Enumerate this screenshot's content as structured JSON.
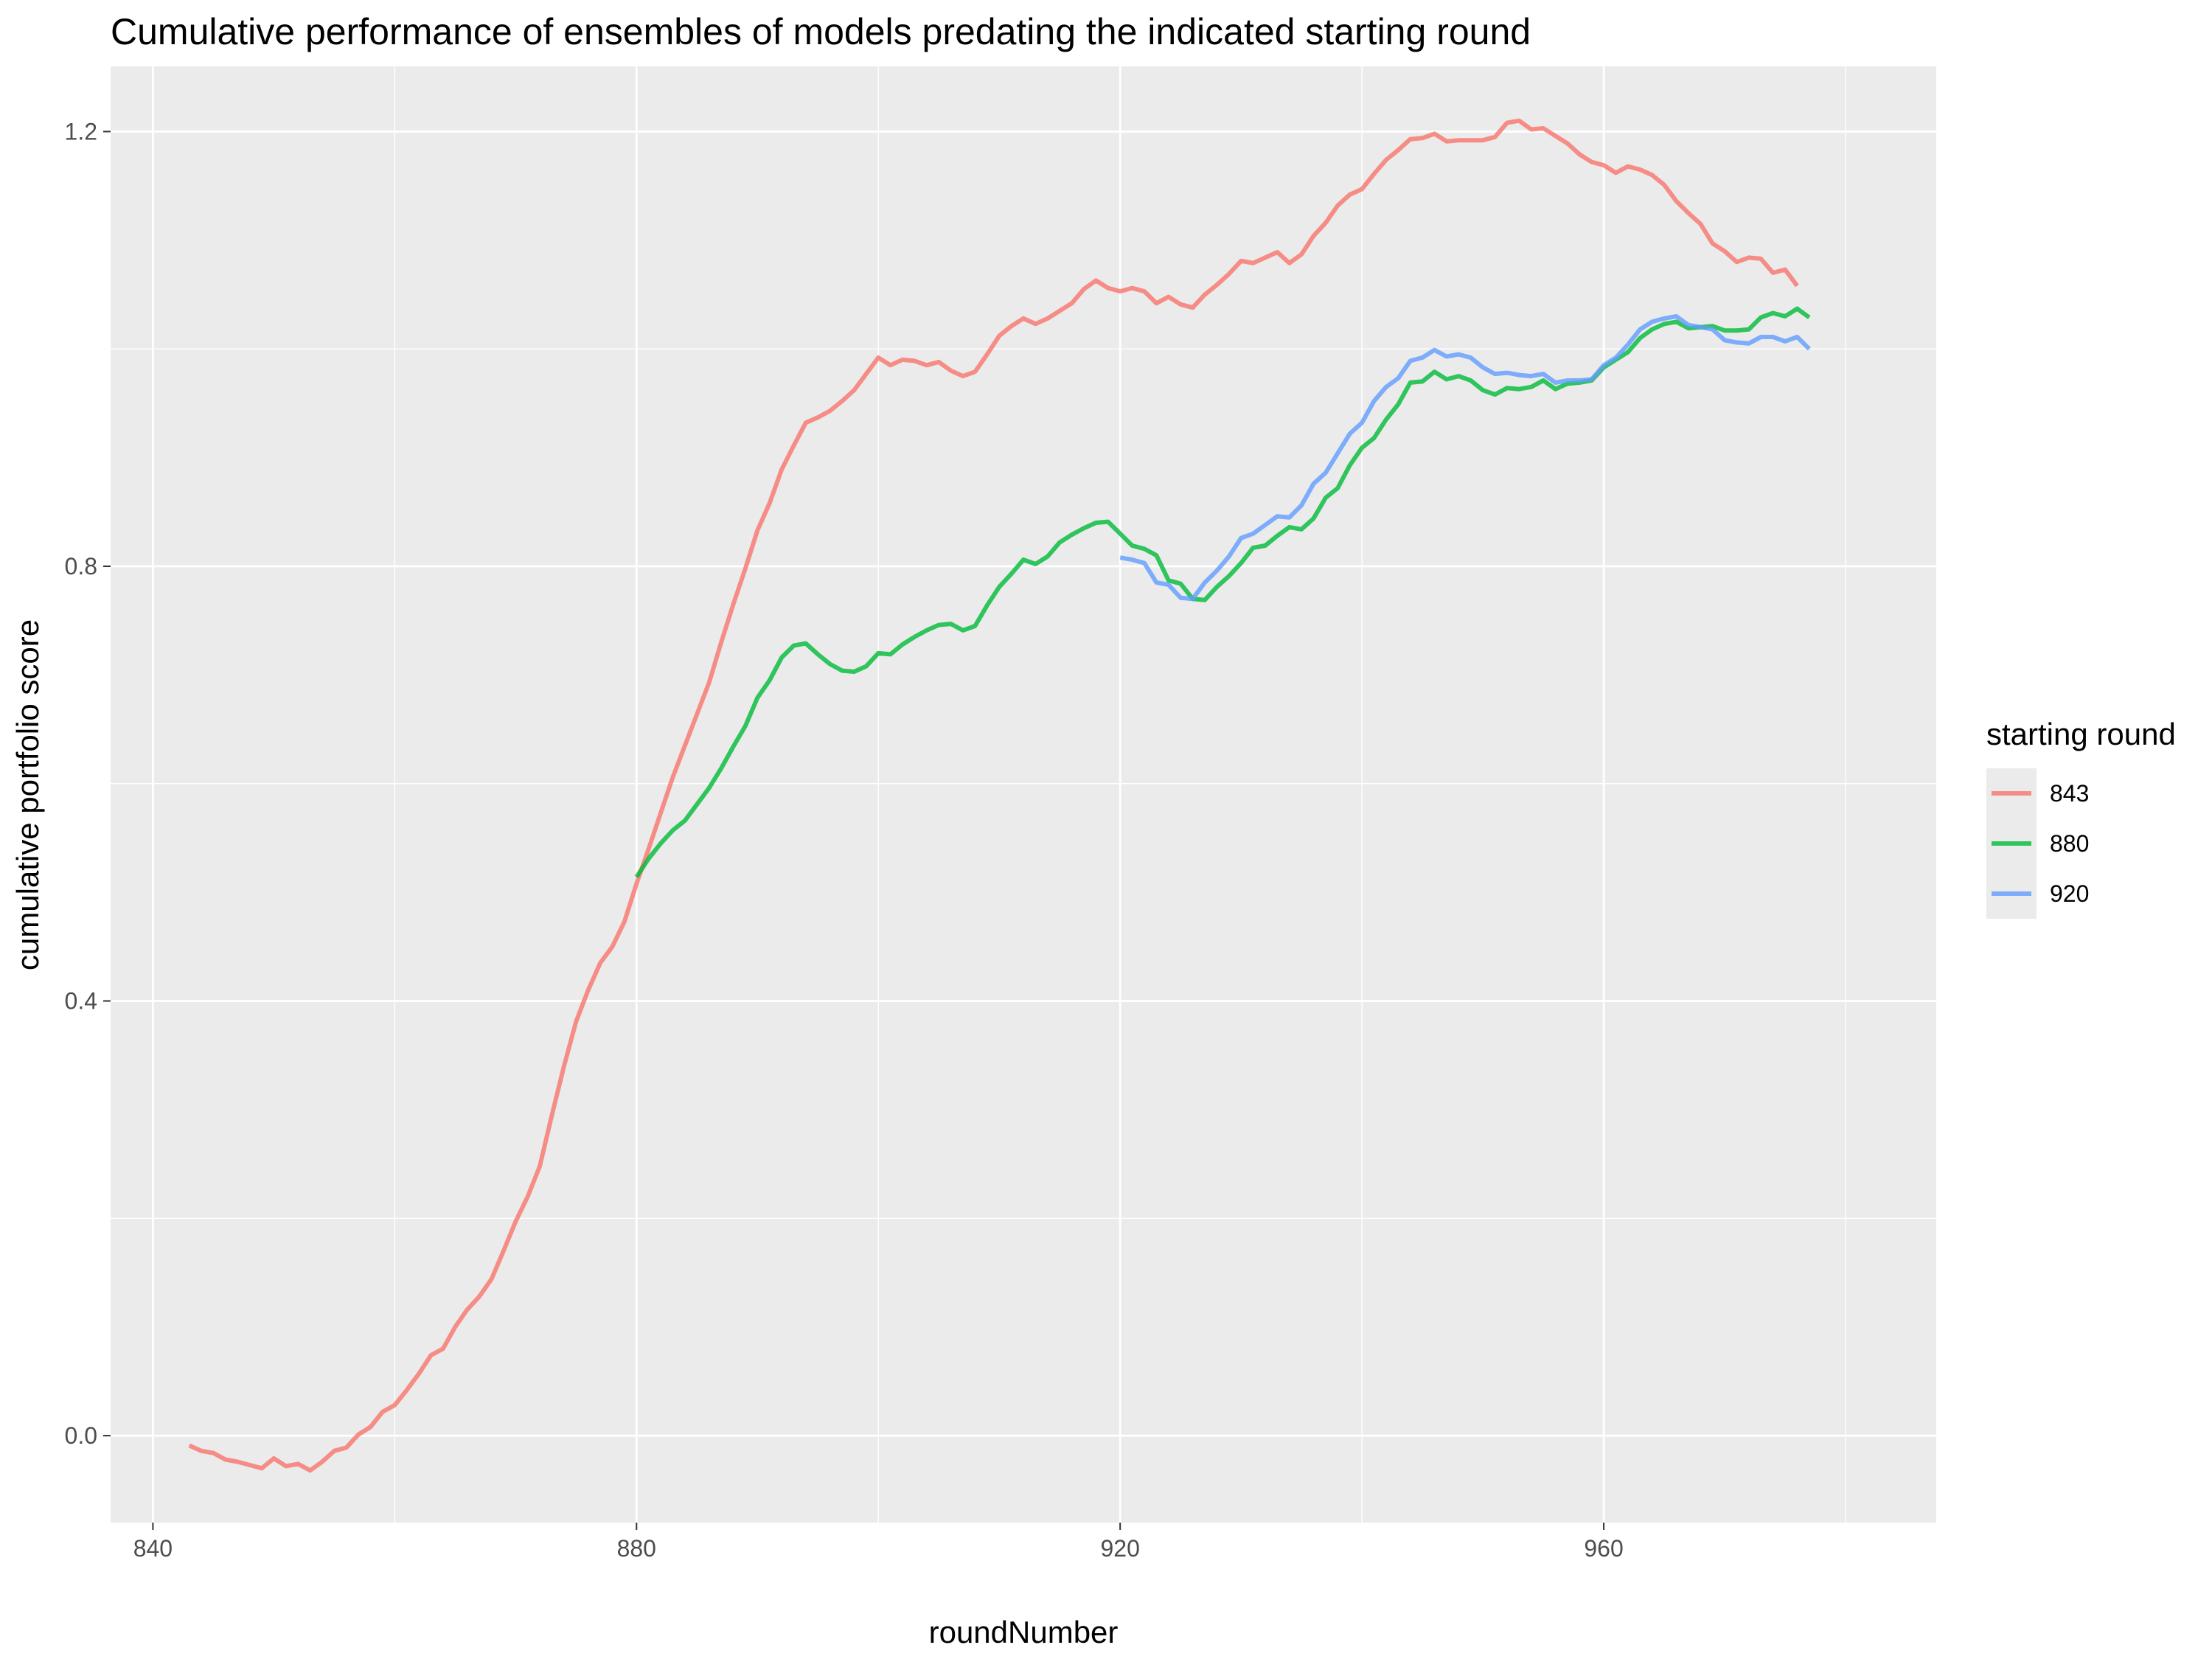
{
  "chart_data": {
    "type": "line",
    "title": "Cumulative performance of ensembles of models predating the indicated starting round",
    "xlabel": "roundNumber",
    "ylabel": "cumulative portfolio score",
    "xlim": [
      836.5,
      987.5
    ],
    "ylim": [
      -0.08,
      1.26
    ],
    "x_ticks": [
      840,
      880,
      920,
      960
    ],
    "x_tick_labels": [
      "840",
      "880",
      "920",
      "960"
    ],
    "y_ticks": [
      0.0,
      0.4,
      0.8,
      1.2
    ],
    "y_tick_labels": [
      "0.0",
      "0.4",
      "0.8",
      "1.2"
    ],
    "grid": true,
    "legend": {
      "title": "starting round",
      "position": "right"
    },
    "series": [
      {
        "name": "843",
        "color": "#F8766D",
        "x_start": 843,
        "values": [
          -0.009,
          -0.014,
          -0.016,
          -0.022,
          -0.024,
          -0.027,
          -0.03,
          -0.021,
          -0.028,
          -0.026,
          -0.032,
          -0.024,
          -0.014,
          -0.011,
          0.001,
          0.008,
          0.022,
          0.028,
          0.042,
          0.057,
          0.074,
          0.08,
          0.1,
          0.116,
          0.128,
          0.144,
          0.17,
          0.197,
          0.22,
          0.248,
          0.295,
          0.34,
          0.381,
          0.41,
          0.435,
          0.45,
          0.473,
          0.508,
          0.54,
          0.573,
          0.606,
          0.635,
          0.664,
          0.693,
          0.73,
          0.765,
          0.798,
          0.833,
          0.858,
          0.889,
          0.911,
          0.932,
          0.937,
          0.943,
          0.952,
          0.962,
          0.977,
          0.992,
          0.985,
          0.99,
          0.989,
          0.985,
          0.988,
          0.98,
          0.975,
          0.979,
          0.995,
          1.012,
          1.021,
          1.028,
          1.023,
          1.028,
          1.035,
          1.042,
          1.055,
          1.063,
          1.056,
          1.053,
          1.056,
          1.053,
          1.042,
          1.048,
          1.041,
          1.038,
          1.05,
          1.059,
          1.069,
          1.081,
          1.079,
          1.084,
          1.089,
          1.079,
          1.087,
          1.104,
          1.116,
          1.132,
          1.142,
          1.147,
          1.161,
          1.174,
          1.183,
          1.193,
          1.194,
          1.198,
          1.191,
          1.192,
          1.192,
          1.192,
          1.195,
          1.208,
          1.21,
          1.202,
          1.203,
          1.196,
          1.189,
          1.179,
          1.172,
          1.169,
          1.162,
          1.168,
          1.165,
          1.16,
          1.151,
          1.136,
          1.125,
          1.115,
          1.097,
          1.09,
          1.08,
          1.084,
          1.083,
          1.07,
          1.073,
          1.058
        ]
      },
      {
        "name": "880",
        "color": "#00BA38",
        "x_start": 880,
        "values": [
          0.514,
          0.531,
          0.545,
          0.557,
          0.566,
          0.581,
          0.596,
          0.614,
          0.634,
          0.653,
          0.679,
          0.695,
          0.716,
          0.727,
          0.729,
          0.719,
          0.71,
          0.704,
          0.703,
          0.708,
          0.72,
          0.719,
          0.728,
          0.735,
          0.741,
          0.746,
          0.747,
          0.741,
          0.745,
          0.764,
          0.781,
          0.793,
          0.806,
          0.802,
          0.809,
          0.822,
          0.829,
          0.835,
          0.84,
          0.841,
          0.83,
          0.819,
          0.816,
          0.81,
          0.787,
          0.784,
          0.77,
          0.769,
          0.781,
          0.791,
          0.803,
          0.817,
          0.819,
          0.828,
          0.836,
          0.834,
          0.844,
          0.863,
          0.872,
          0.893,
          0.909,
          0.918,
          0.935,
          0.949,
          0.969,
          0.97,
          0.979,
          0.972,
          0.975,
          0.971,
          0.962,
          0.958,
          0.964,
          0.963,
          0.965,
          0.971,
          0.963,
          0.968,
          0.969,
          0.971,
          0.983,
          0.99,
          0.997,
          1.01,
          1.018,
          1.023,
          1.025,
          1.019,
          1.02,
          1.021,
          1.017,
          1.017,
          1.018,
          1.029,
          1.033,
          1.03,
          1.037,
          1.029
        ]
      },
      {
        "name": "920",
        "color": "#619CFF",
        "x_start": 920,
        "values": [
          0.808,
          0.806,
          0.803,
          0.785,
          0.783,
          0.771,
          0.77,
          0.785,
          0.796,
          0.809,
          0.826,
          0.83,
          0.838,
          0.846,
          0.845,
          0.856,
          0.876,
          0.886,
          0.904,
          0.922,
          0.932,
          0.952,
          0.965,
          0.973,
          0.989,
          0.992,
          0.999,
          0.993,
          0.995,
          0.992,
          0.983,
          0.977,
          0.978,
          0.976,
          0.975,
          0.977,
          0.969,
          0.971,
          0.971,
          0.972,
          0.985,
          0.992,
          1.004,
          1.018,
          1.025,
          1.028,
          1.03,
          1.022,
          1.02,
          1.018,
          1.008,
          1.006,
          1.005,
          1.011,
          1.011,
          1.007,
          1.011,
          1.0
        ]
      }
    ]
  }
}
